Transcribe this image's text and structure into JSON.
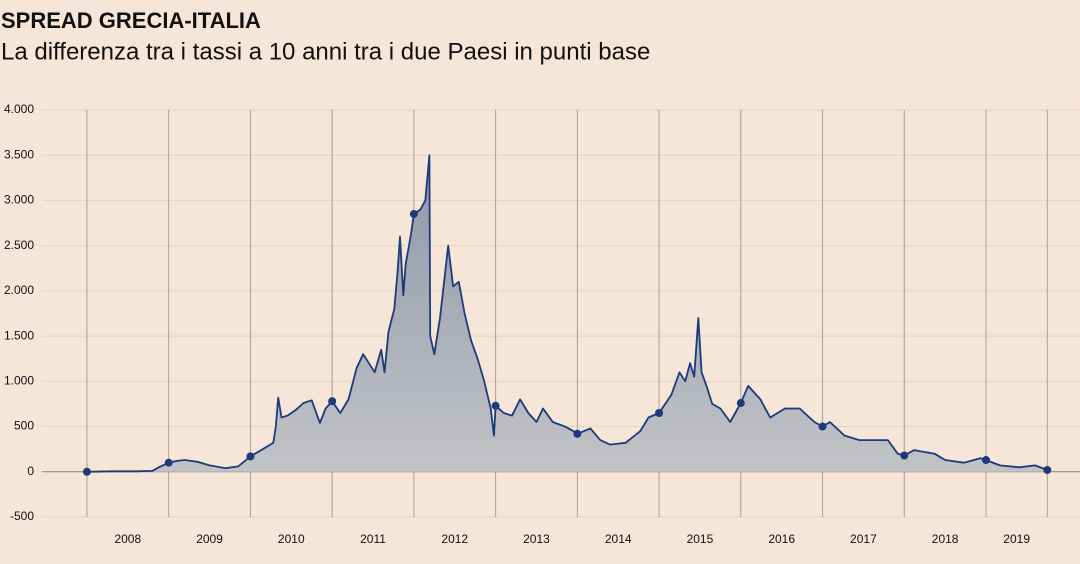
{
  "chart_data": {
    "type": "area",
    "title": "SPREAD GRECIA-ITALIA",
    "subtitle": "La differenza tra i tassi a 10 anni tra i due Paesi in punti base",
    "xlim": [
      2007.45,
      2020.15
    ],
    "xticks": [
      2008,
      2009,
      2010,
      2011,
      2012,
      2013,
      2014,
      2015,
      2016,
      2017,
      2018,
      2019
    ],
    "ylim": [
      -500,
      4000
    ],
    "yticks": [
      -500,
      0,
      500,
      {
        "value": 1000,
        "label": "1.000"
      },
      {
        "value": 1500,
        "label": "1.500"
      },
      {
        "value": 2000,
        "label": "2.000"
      },
      {
        "value": 2500,
        "label": "2.500"
      },
      {
        "value": 3000,
        "label": "3.000"
      },
      {
        "value": 3500,
        "label": "3.500"
      },
      {
        "value": 4000,
        "label": "4.000"
      }
    ],
    "grid": true,
    "color": "#1c3a7c",
    "x": [
      2008,
      2008.3,
      2008.6,
      2008.8,
      2008.9,
      2009,
      2009.1,
      2009.2,
      2009.35,
      2009.5,
      2009.7,
      2009.85,
      2010,
      2010.15,
      2010.28,
      2010.31,
      2010.34,
      2010.38,
      2010.45,
      2010.55,
      2010.65,
      2010.75,
      2010.85,
      2010.92,
      2011,
      2011.1,
      2011.2,
      2011.3,
      2011.38,
      2011.45,
      2011.52,
      2011.6,
      2011.64,
      2011.69,
      2011.76,
      2011.8,
      2011.83,
      2011.87,
      2011.9,
      2011.96,
      2012,
      2012.08,
      2012.14,
      2012.19,
      2012.2,
      2012.25,
      2012.32,
      2012.42,
      2012.48,
      2012.55,
      2012.62,
      2012.7,
      2012.78,
      2012.86,
      2012.94,
      2012.98,
      2013,
      2013.1,
      2013.2,
      2013.3,
      2013.4,
      2013.5,
      2013.58,
      2013.7,
      2013.85,
      2013.95,
      2014,
      2014.16,
      2014.28,
      2014.4,
      2014.59,
      2014.77,
      2014.87,
      2015,
      2015.15,
      2015.25,
      2015.32,
      2015.38,
      2015.43,
      2015.48,
      2015.52,
      2015.58,
      2015.65,
      2015.75,
      2015.87,
      2016,
      2016.09,
      2016.24,
      2016.36,
      2016.54,
      2016.72,
      2016.9,
      2017,
      2017.09,
      2017.27,
      2017.45,
      2017.8,
      2017.92,
      2018,
      2018.12,
      2018.37,
      2018.5,
      2018.73,
      2018.93,
      2019,
      2019.17,
      2019.41,
      2019.6,
      2019.75
    ],
    "values": [
      0,
      5,
      5,
      10,
      60,
      100,
      120,
      130,
      110,
      70,
      40,
      60,
      170,
      250,
      320,
      500,
      820,
      600,
      620,
      680,
      760,
      790,
      540,
      700,
      780,
      650,
      800,
      1150,
      1300,
      1200,
      1100,
      1350,
      1100,
      1550,
      1800,
      2200,
      2600,
      1950,
      2300,
      2600,
      2850,
      2900,
      3000,
      3500,
      1500,
      1300,
      1700,
      2500,
      2050,
      2100,
      1750,
      1450,
      1250,
      1000,
      700,
      400,
      730,
      650,
      620,
      800,
      650,
      550,
      700,
      550,
      500,
      450,
      420,
      480,
      350,
      300,
      320,
      450,
      600,
      650,
      850,
      1100,
      1000,
      1200,
      1050,
      1700,
      1100,
      950,
      750,
      700,
      550,
      760,
      950,
      800,
      600,
      700,
      700,
      550,
      500,
      550,
      400,
      350,
      350,
      200,
      180,
      240,
      200,
      130,
      100,
      150,
      130,
      70,
      50,
      70,
      20
    ]
  }
}
